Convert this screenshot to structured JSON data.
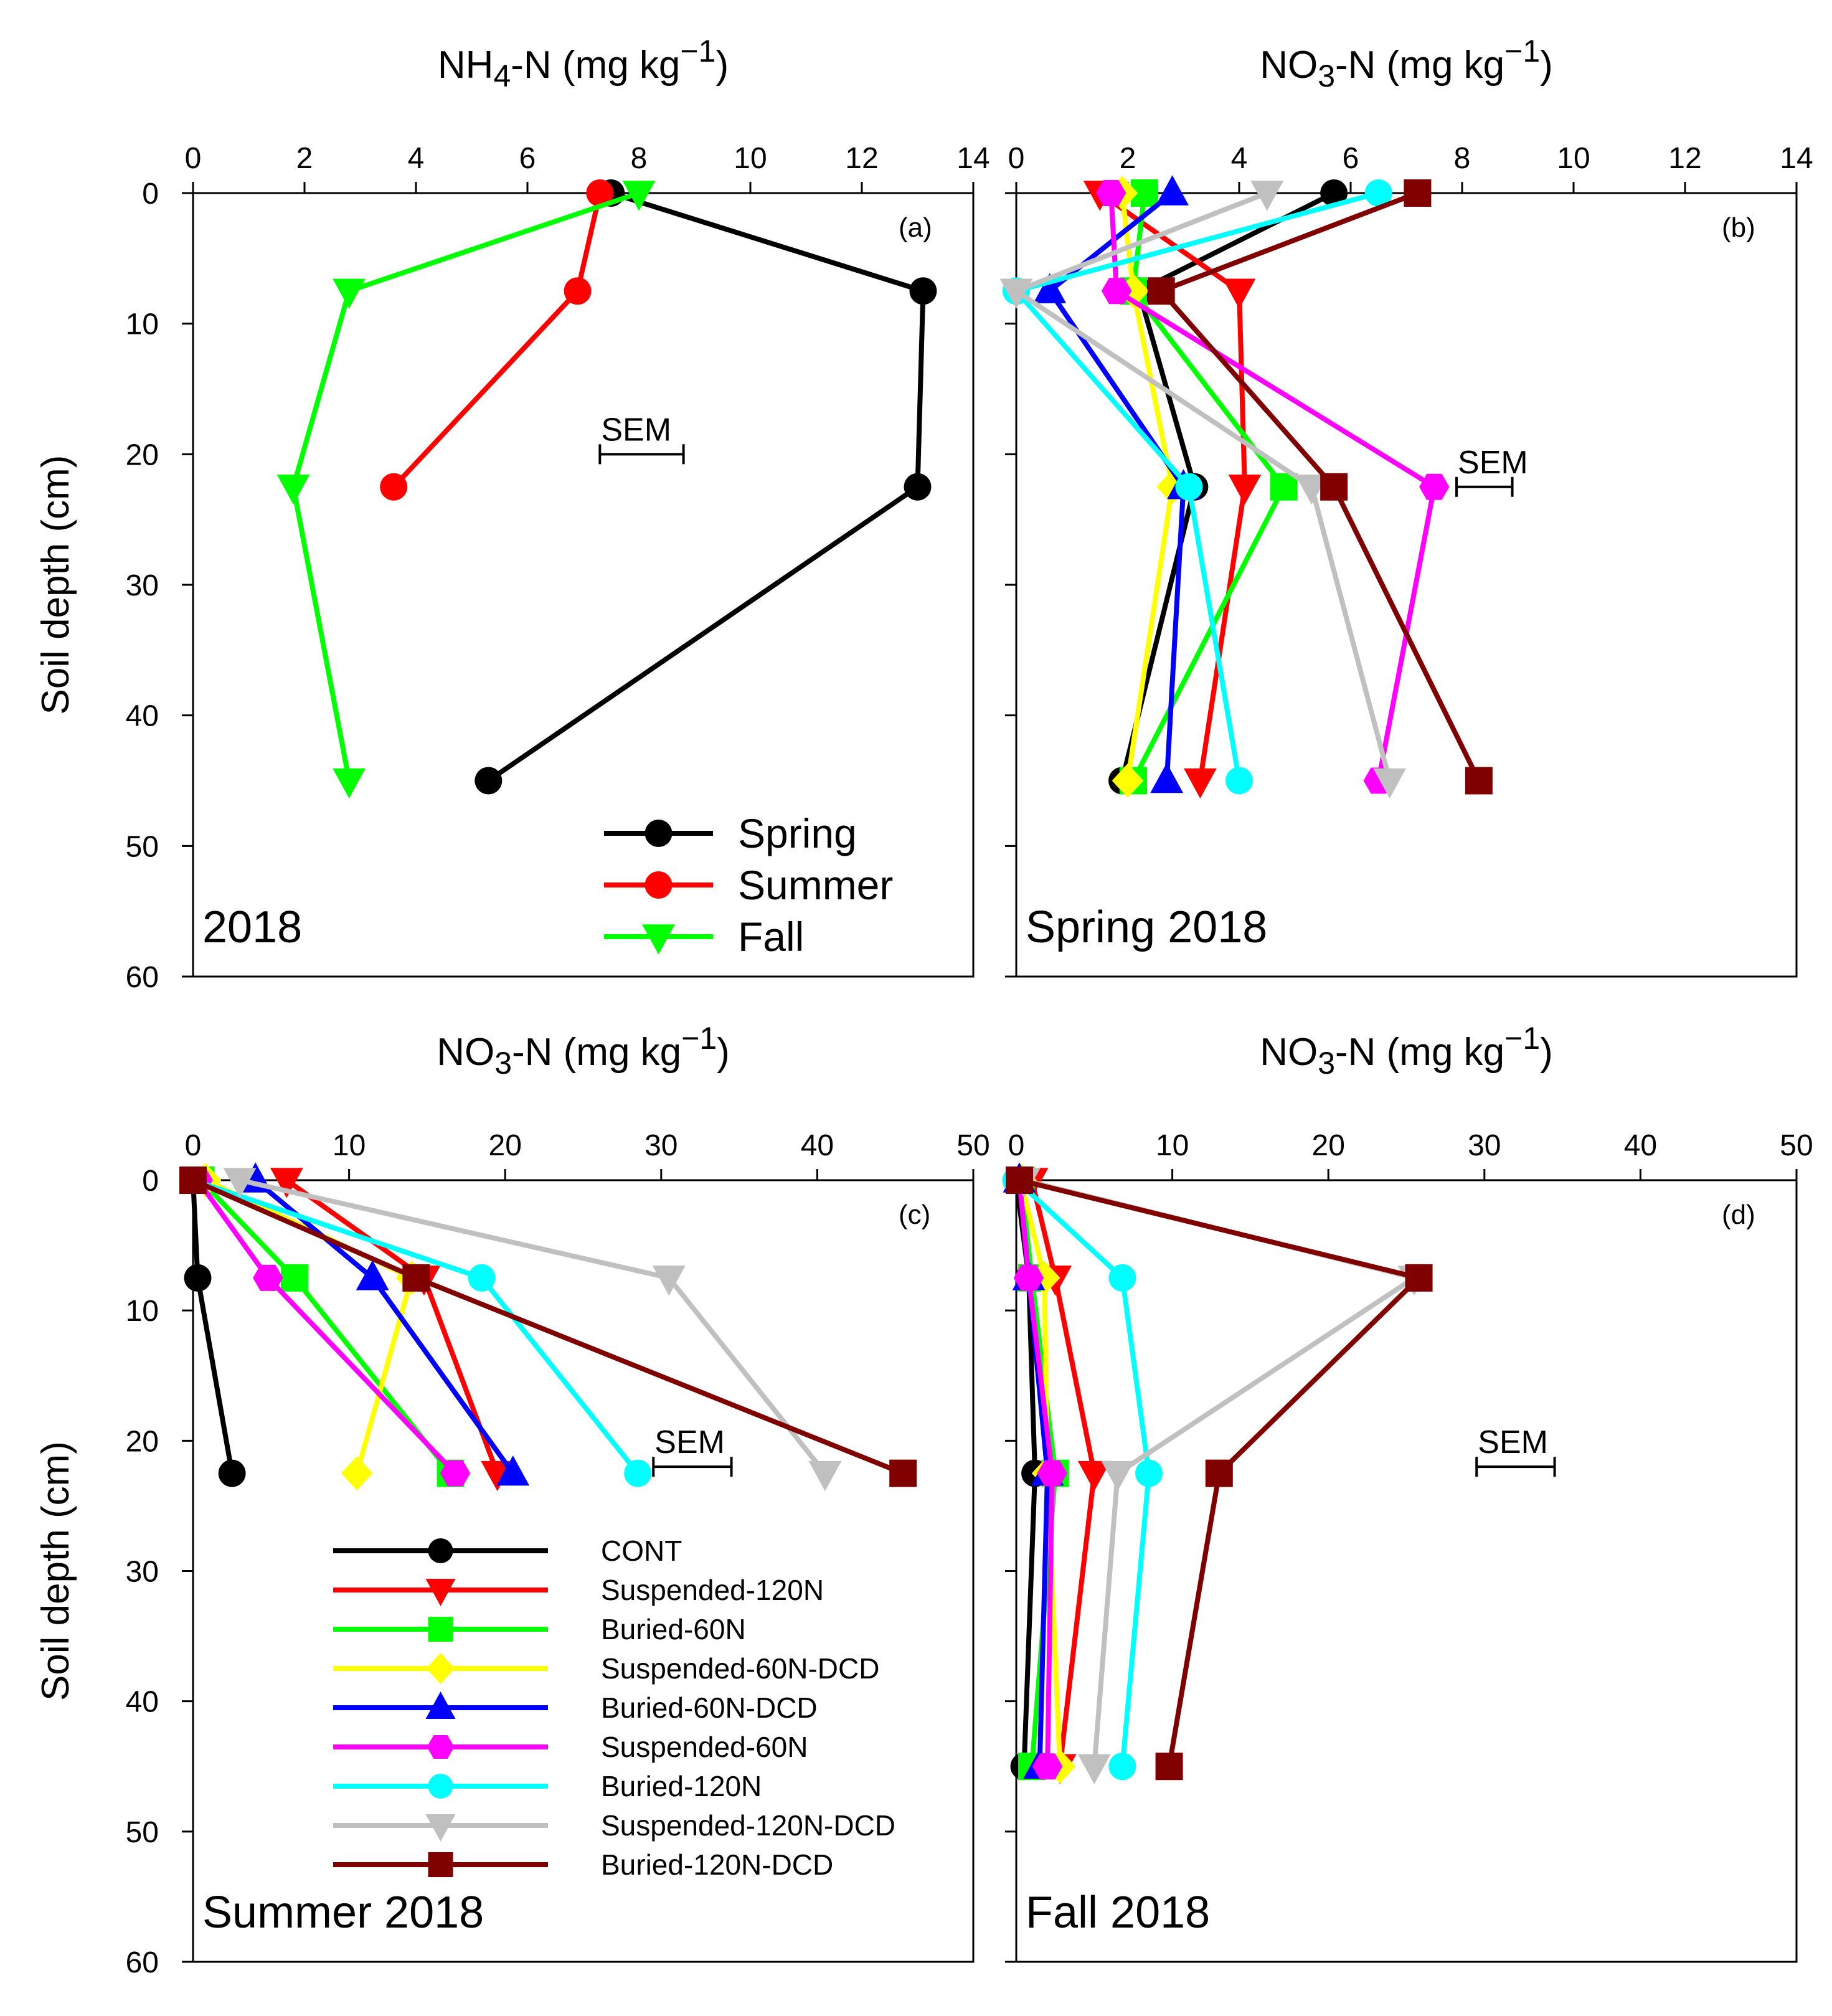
{
  "colors": {
    "CONT": "#000000",
    "Suspended-120N": "#ff0000",
    "Buried-60N": "#00ff00",
    "Suspended-60N-DCD": "#ffff00",
    "Buried-60N-DCD": "#0000ff",
    "Suspended-60N": "#ff00ff",
    "Buried-120N": "#00ffff",
    "Suspended-120N-DCD": "#c0c0c0",
    "Buried-120N-DCD": "#800000",
    "Spring": "#000000",
    "Summer": "#ff0000",
    "Fall": "#00ff00"
  },
  "chart_data": [
    {
      "type": "line",
      "panel": "(a)",
      "year_label": "2018",
      "xlabel": "NH4-N (mg kg-1)",
      "ylabel": "Soil depth (cm)",
      "xlim": [
        0,
        14
      ],
      "ylim": [
        60,
        0
      ],
      "xticks": [
        "0",
        "2",
        "4",
        "6",
        "8",
        "10",
        "12",
        "14"
      ],
      "yticks": [
        "0",
        "10",
        "20",
        "30",
        "40",
        "50",
        "60"
      ],
      "depths": [
        0,
        7.5,
        22.5,
        45
      ],
      "sem": {
        "label": "SEM",
        "x_start": 7.3,
        "width": 1.5,
        "depth": 20
      },
      "series": [
        {
          "name": "Spring",
          "marker": "circle",
          "values": [
            7.5,
            13.1,
            13.0,
            5.3
          ]
        },
        {
          "name": "Summer",
          "marker": "circle",
          "values": [
            7.3,
            6.9,
            3.6,
            null
          ]
        },
        {
          "name": "Fall",
          "marker": "triangle-down",
          "values": [
            8.0,
            2.8,
            1.8,
            2.8
          ]
        }
      ]
    },
    {
      "type": "line",
      "panel": "(b)",
      "year_label": "Spring 2018",
      "xlabel": "NO3-N (mg kg-1)",
      "ylabel": "",
      "xlim": [
        0,
        14
      ],
      "ylim": [
        60,
        0
      ],
      "xticks": [
        "0",
        "2",
        "4",
        "6",
        "8",
        "10",
        "12",
        "14"
      ],
      "yticks": [],
      "depths": [
        0,
        7.5,
        22.5,
        45
      ],
      "sem": {
        "label": "SEM",
        "x_start": 7.9,
        "width": 1.0,
        "depth": 22.5
      },
      "series": [
        {
          "name": "CONT",
          "marker": "circle",
          "values": [
            5.7,
            2.2,
            3.2,
            1.9
          ]
        },
        {
          "name": "Suspended-120N",
          "marker": "triangle-down",
          "values": [
            1.5,
            4.0,
            4.1,
            3.3
          ]
        },
        {
          "name": "Buried-60N",
          "marker": "square",
          "values": [
            2.3,
            2.1,
            4.8,
            2.1
          ]
        },
        {
          "name": "Suspended-60N-DCD",
          "marker": "diamond",
          "values": [
            1.9,
            2.1,
            2.8,
            2.0
          ]
        },
        {
          "name": "Buried-60N-DCD",
          "marker": "triangle-up",
          "values": [
            2.8,
            0.6,
            3.0,
            2.7
          ]
        },
        {
          "name": "Suspended-60N",
          "marker": "hexagon",
          "values": [
            1.7,
            1.8,
            7.5,
            6.5
          ]
        },
        {
          "name": "Buried-120N",
          "marker": "circle",
          "values": [
            6.5,
            0.0,
            3.1,
            4.0
          ]
        },
        {
          "name": "Suspended-120N-DCD",
          "marker": "triangle-down",
          "values": [
            4.5,
            0.0,
            5.3,
            6.7
          ]
        },
        {
          "name": "Buried-120N-DCD",
          "marker": "square",
          "values": [
            7.2,
            2.6,
            5.7,
            8.3
          ]
        }
      ]
    },
    {
      "type": "line",
      "panel": "(c)",
      "year_label": "Summer 2018",
      "xlabel": "NO3-N (mg kg-1)",
      "ylabel": "Soil depth (cm)",
      "xlim": [
        0,
        50
      ],
      "ylim": [
        60,
        0
      ],
      "xticks": [
        "0",
        "10",
        "20",
        "30",
        "40",
        "50"
      ],
      "yticks": [
        "0",
        "10",
        "20",
        "30",
        "40",
        "50",
        "60"
      ],
      "depths": [
        0,
        7.5,
        22.5
      ],
      "sem": {
        "label": "SEM",
        "x_start": 29.5,
        "width": 5.0,
        "depth": 22
      },
      "series": [
        {
          "name": "CONT",
          "marker": "circle",
          "values": [
            0.0,
            0.3,
            2.5
          ]
        },
        {
          "name": "Suspended-120N",
          "marker": "triangle-down",
          "values": [
            6.0,
            14.8,
            19.5
          ]
        },
        {
          "name": "Buried-60N",
          "marker": "square",
          "values": [
            0.5,
            6.5,
            16.5
          ]
        },
        {
          "name": "Suspended-60N-DCD",
          "marker": "diamond",
          "values": [
            0.8,
            14.0,
            10.5
          ]
        },
        {
          "name": "Buried-60N-DCD",
          "marker": "triangle-up",
          "values": [
            4.0,
            11.5,
            20.5
          ]
        },
        {
          "name": "Suspended-60N",
          "marker": "hexagon",
          "values": [
            0.3,
            4.8,
            16.8
          ]
        },
        {
          "name": "Buried-120N",
          "marker": "circle",
          "values": [
            0.0,
            18.5,
            28.5
          ]
        },
        {
          "name": "Suspended-120N-DCD",
          "marker": "triangle-down",
          "values": [
            3.0,
            30.5,
            40.5
          ]
        },
        {
          "name": "Buried-120N-DCD",
          "marker": "square",
          "values": [
            0.0,
            14.3,
            45.5
          ]
        }
      ]
    },
    {
      "type": "line",
      "panel": "(d)",
      "year_label": "Fall 2018",
      "xlabel": "NO3-N (mg kg-1)",
      "ylabel": "",
      "xlim": [
        0,
        50
      ],
      "ylim": [
        60,
        0
      ],
      "xticks": [
        "0",
        "10",
        "20",
        "30",
        "40",
        "50"
      ],
      "yticks": [],
      "depths": [
        0,
        7.5,
        22.5,
        45
      ],
      "sem": {
        "label": "SEM",
        "x_start": 29.5,
        "width": 5.0,
        "depth": 22
      },
      "series": [
        {
          "name": "CONT",
          "marker": "circle",
          "values": [
            0.0,
            0.8,
            1.2,
            0.5
          ]
        },
        {
          "name": "Suspended-120N",
          "marker": "triangle-down",
          "values": [
            1.0,
            2.5,
            5.0,
            2.8
          ]
        },
        {
          "name": "Buried-60N",
          "marker": "square",
          "values": [
            0.3,
            1.0,
            2.5,
            1.0
          ]
        },
        {
          "name": "Suspended-60N-DCD",
          "marker": "diamond",
          "values": [
            0.3,
            1.8,
            2.0,
            2.8
          ]
        },
        {
          "name": "Buried-60N-DCD",
          "marker": "triangle-up",
          "values": [
            0.2,
            0.8,
            2.0,
            1.5
          ]
        },
        {
          "name": "Suspended-60N",
          "marker": "hexagon",
          "values": [
            0.2,
            0.8,
            2.3,
            2.0
          ]
        },
        {
          "name": "Buried-120N",
          "marker": "circle",
          "values": [
            0.0,
            6.8,
            8.5,
            6.8
          ]
        },
        {
          "name": "Suspended-120N-DCD",
          "marker": "triangle-down",
          "values": [
            0.5,
            25.5,
            6.5,
            5.0
          ]
        },
        {
          "name": "Buried-120N-DCD",
          "marker": "square",
          "values": [
            0.2,
            25.8,
            13.0,
            9.8
          ]
        }
      ]
    }
  ],
  "legend_seasons": [
    "Spring",
    "Summer",
    "Fall"
  ],
  "legend_treatments": [
    "CONT",
    "Suspended-120N",
    "Buried-60N",
    "Suspended-60N-DCD",
    "Buried-60N-DCD",
    "Suspended-60N",
    "Buried-120N",
    "Suspended-120N-DCD",
    "Buried-120N-DCD"
  ]
}
